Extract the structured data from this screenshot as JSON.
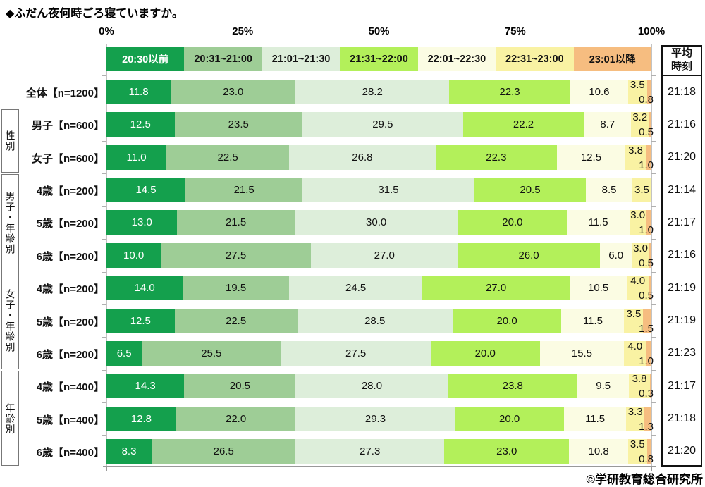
{
  "chart_data": {
    "type": "bar",
    "subtype": "horizontal-stacked-100pct",
    "title": "◆ふだん夜何時ごろ寝ていますか。",
    "footer": "©学研教育総合研究所",
    "x_axis": {
      "ticks": [
        "0%",
        "25%",
        "50%",
        "75%",
        "100%"
      ],
      "range": [
        0,
        100
      ],
      "grid": true
    },
    "avg_column": {
      "header_line1": "平均",
      "header_line2": "時刻"
    },
    "legend": [
      {
        "label": "20:30以前",
        "color": "#14a04d",
        "text_color": "#ffffff"
      },
      {
        "label": "20:31~21:00",
        "color": "#9ecd96",
        "text_color": "#111111"
      },
      {
        "label": "21:01~21:30",
        "color": "#ddeeda",
        "text_color": "#111111"
      },
      {
        "label": "21:31~22:00",
        "color": "#b3f05a",
        "text_color": "#111111"
      },
      {
        "label": "22:01~22:30",
        "color": "#fbfce3",
        "text_color": "#111111"
      },
      {
        "label": "22:31~23:00",
        "color": "#f9f2a3",
        "text_color": "#111111"
      },
      {
        "label": "23:01以降",
        "color": "#f6bd80",
        "text_color": "#111111"
      }
    ],
    "groups": [
      {
        "label": "性別",
        "first_row": 1,
        "last_row": 2
      },
      {
        "label": "男子・年齢別",
        "first_row": 3,
        "last_row": 5
      },
      {
        "label": "女子・年齢別",
        "first_row": 6,
        "last_row": 8
      },
      {
        "label": "年齢別",
        "first_row": 9,
        "last_row": 11
      }
    ],
    "rows": [
      {
        "label": "全体【n=1200】",
        "values": [
          11.8,
          23.0,
          28.2,
          22.3,
          10.6,
          3.5,
          0.8
        ],
        "avg": "21:18"
      },
      {
        "label": "男子【n=600】",
        "values": [
          12.5,
          23.5,
          29.5,
          22.2,
          8.7,
          3.2,
          0.5
        ],
        "avg": "21:16"
      },
      {
        "label": "女子【n=600】",
        "values": [
          11.0,
          22.5,
          26.8,
          22.3,
          12.5,
          3.8,
          1.0
        ],
        "avg": "21:20"
      },
      {
        "label": "4歳【n=200】",
        "values": [
          14.5,
          21.5,
          31.5,
          20.5,
          8.5,
          3.5,
          0.0
        ],
        "avg": "21:14"
      },
      {
        "label": "5歳【n=200】",
        "values": [
          13.0,
          21.5,
          30.0,
          20.0,
          11.5,
          3.0,
          1.0
        ],
        "avg": "21:17"
      },
      {
        "label": "6歳【n=200】",
        "values": [
          10.0,
          27.5,
          27.0,
          26.0,
          6.0,
          3.0,
          0.5
        ],
        "avg": "21:16"
      },
      {
        "label": "4歳【n=200】",
        "values": [
          14.0,
          19.5,
          24.5,
          27.0,
          10.5,
          4.0,
          0.5
        ],
        "avg": "21:19"
      },
      {
        "label": "5歳【n=200】",
        "values": [
          12.5,
          22.5,
          28.5,
          20.0,
          11.5,
          3.5,
          1.5
        ],
        "avg": "21:19"
      },
      {
        "label": "6歳【n=200】",
        "values": [
          6.5,
          25.5,
          27.5,
          20.0,
          15.5,
          4.0,
          1.0
        ],
        "avg": "21:23"
      },
      {
        "label": "4歳【n=400】",
        "values": [
          14.3,
          20.5,
          28.0,
          23.8,
          9.5,
          3.8,
          0.3
        ],
        "avg": "21:17"
      },
      {
        "label": "5歳【n=400】",
        "values": [
          12.8,
          22.0,
          29.3,
          20.0,
          11.5,
          3.3,
          1.3
        ],
        "avg": "21:18"
      },
      {
        "label": "6歳【n=400】",
        "values": [
          8.3,
          26.5,
          27.3,
          23.0,
          10.8,
          3.5,
          0.8
        ],
        "avg": "21:20"
      }
    ]
  }
}
